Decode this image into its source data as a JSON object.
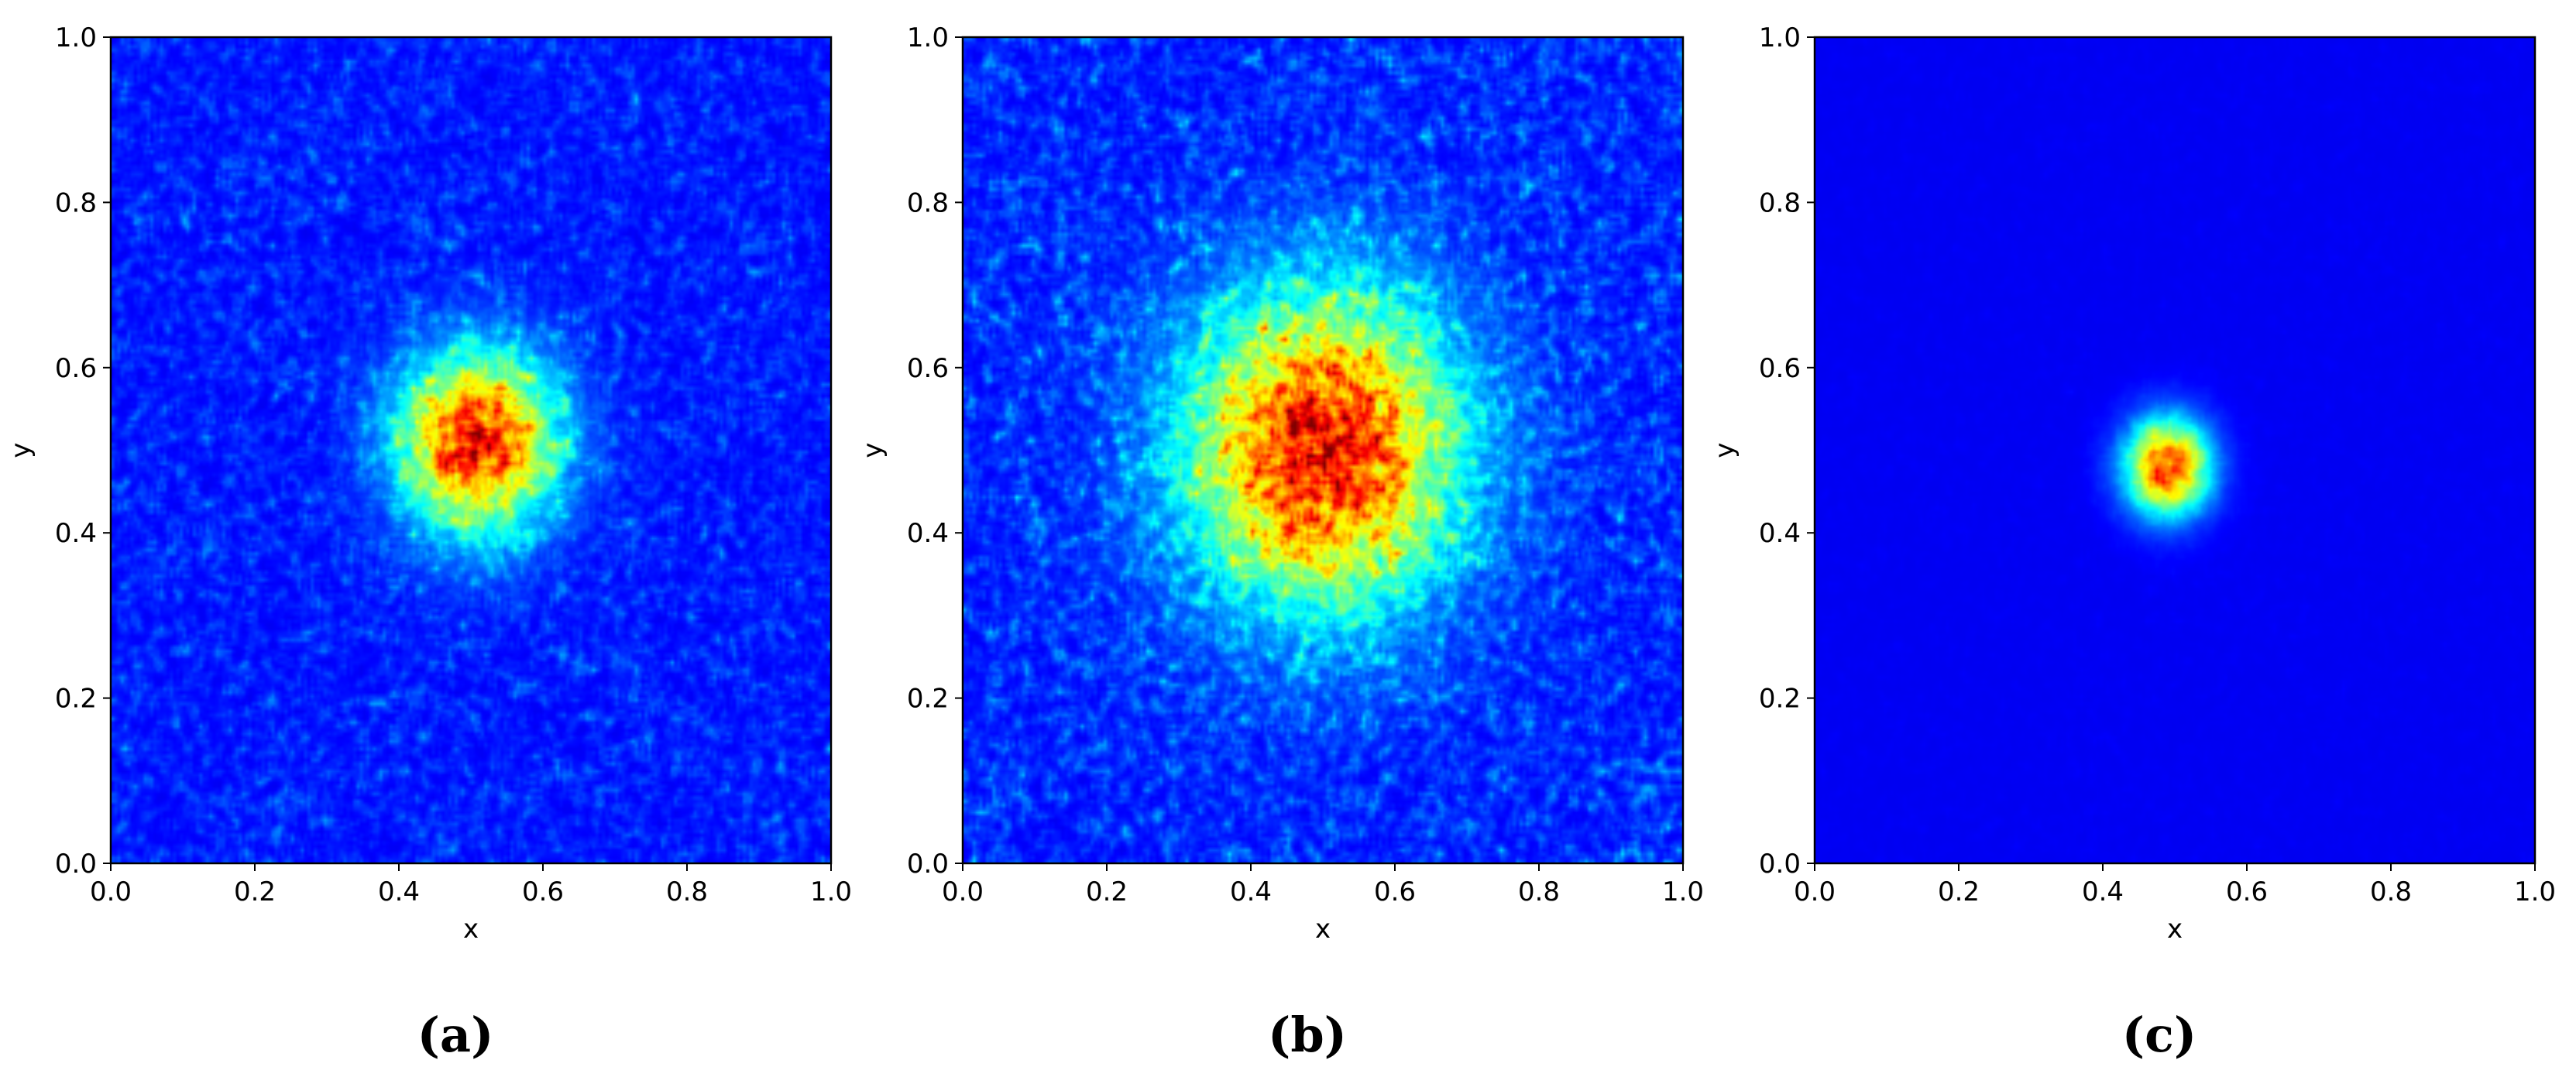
{
  "chart_data": [
    {
      "type": "heatmap",
      "caption": "(a)",
      "xlabel": "x",
      "ylabel": "y",
      "xlim": [
        0.0,
        1.0
      ],
      "ylim": [
        0.0,
        1.0
      ],
      "xticks": [
        "0.0",
        "0.2",
        "0.4",
        "0.6",
        "0.8",
        "1.0"
      ],
      "yticks": [
        "0.0",
        "0.2",
        "0.4",
        "0.6",
        "0.8",
        "1.0"
      ],
      "colormap": "jet",
      "hotspot": {
        "x": 0.51,
        "y": 0.51,
        "spread": 0.075
      },
      "background_noise": 0.35
    },
    {
      "type": "heatmap",
      "caption": "(b)",
      "xlabel": "x",
      "ylabel": "y",
      "xlim": [
        0.0,
        1.0
      ],
      "ylim": [
        0.0,
        1.0
      ],
      "xticks": [
        "0.0",
        "0.2",
        "0.4",
        "0.6",
        "0.8",
        "1.0"
      ],
      "yticks": [
        "0.0",
        "0.2",
        "0.4",
        "0.6",
        "0.8",
        "1.0"
      ],
      "colormap": "jet",
      "hotspot": {
        "x": 0.5,
        "y": 0.5,
        "spread": 0.13
      },
      "background_noise": 0.45
    },
    {
      "type": "heatmap",
      "caption": "(c)",
      "xlabel": "x",
      "ylabel": "y",
      "xlim": [
        0.0,
        1.0
      ],
      "ylim": [
        0.0,
        1.0
      ],
      "xticks": [
        "0.0",
        "0.2",
        "0.4",
        "0.6",
        "0.8",
        "1.0"
      ],
      "yticks": [
        "0.0",
        "0.2",
        "0.4",
        "0.6",
        "0.8",
        "1.0"
      ],
      "colormap": "jet",
      "hotspot": {
        "x": 0.49,
        "y": 0.48,
        "spread": 0.04
      },
      "background_noise": 0.03
    }
  ]
}
